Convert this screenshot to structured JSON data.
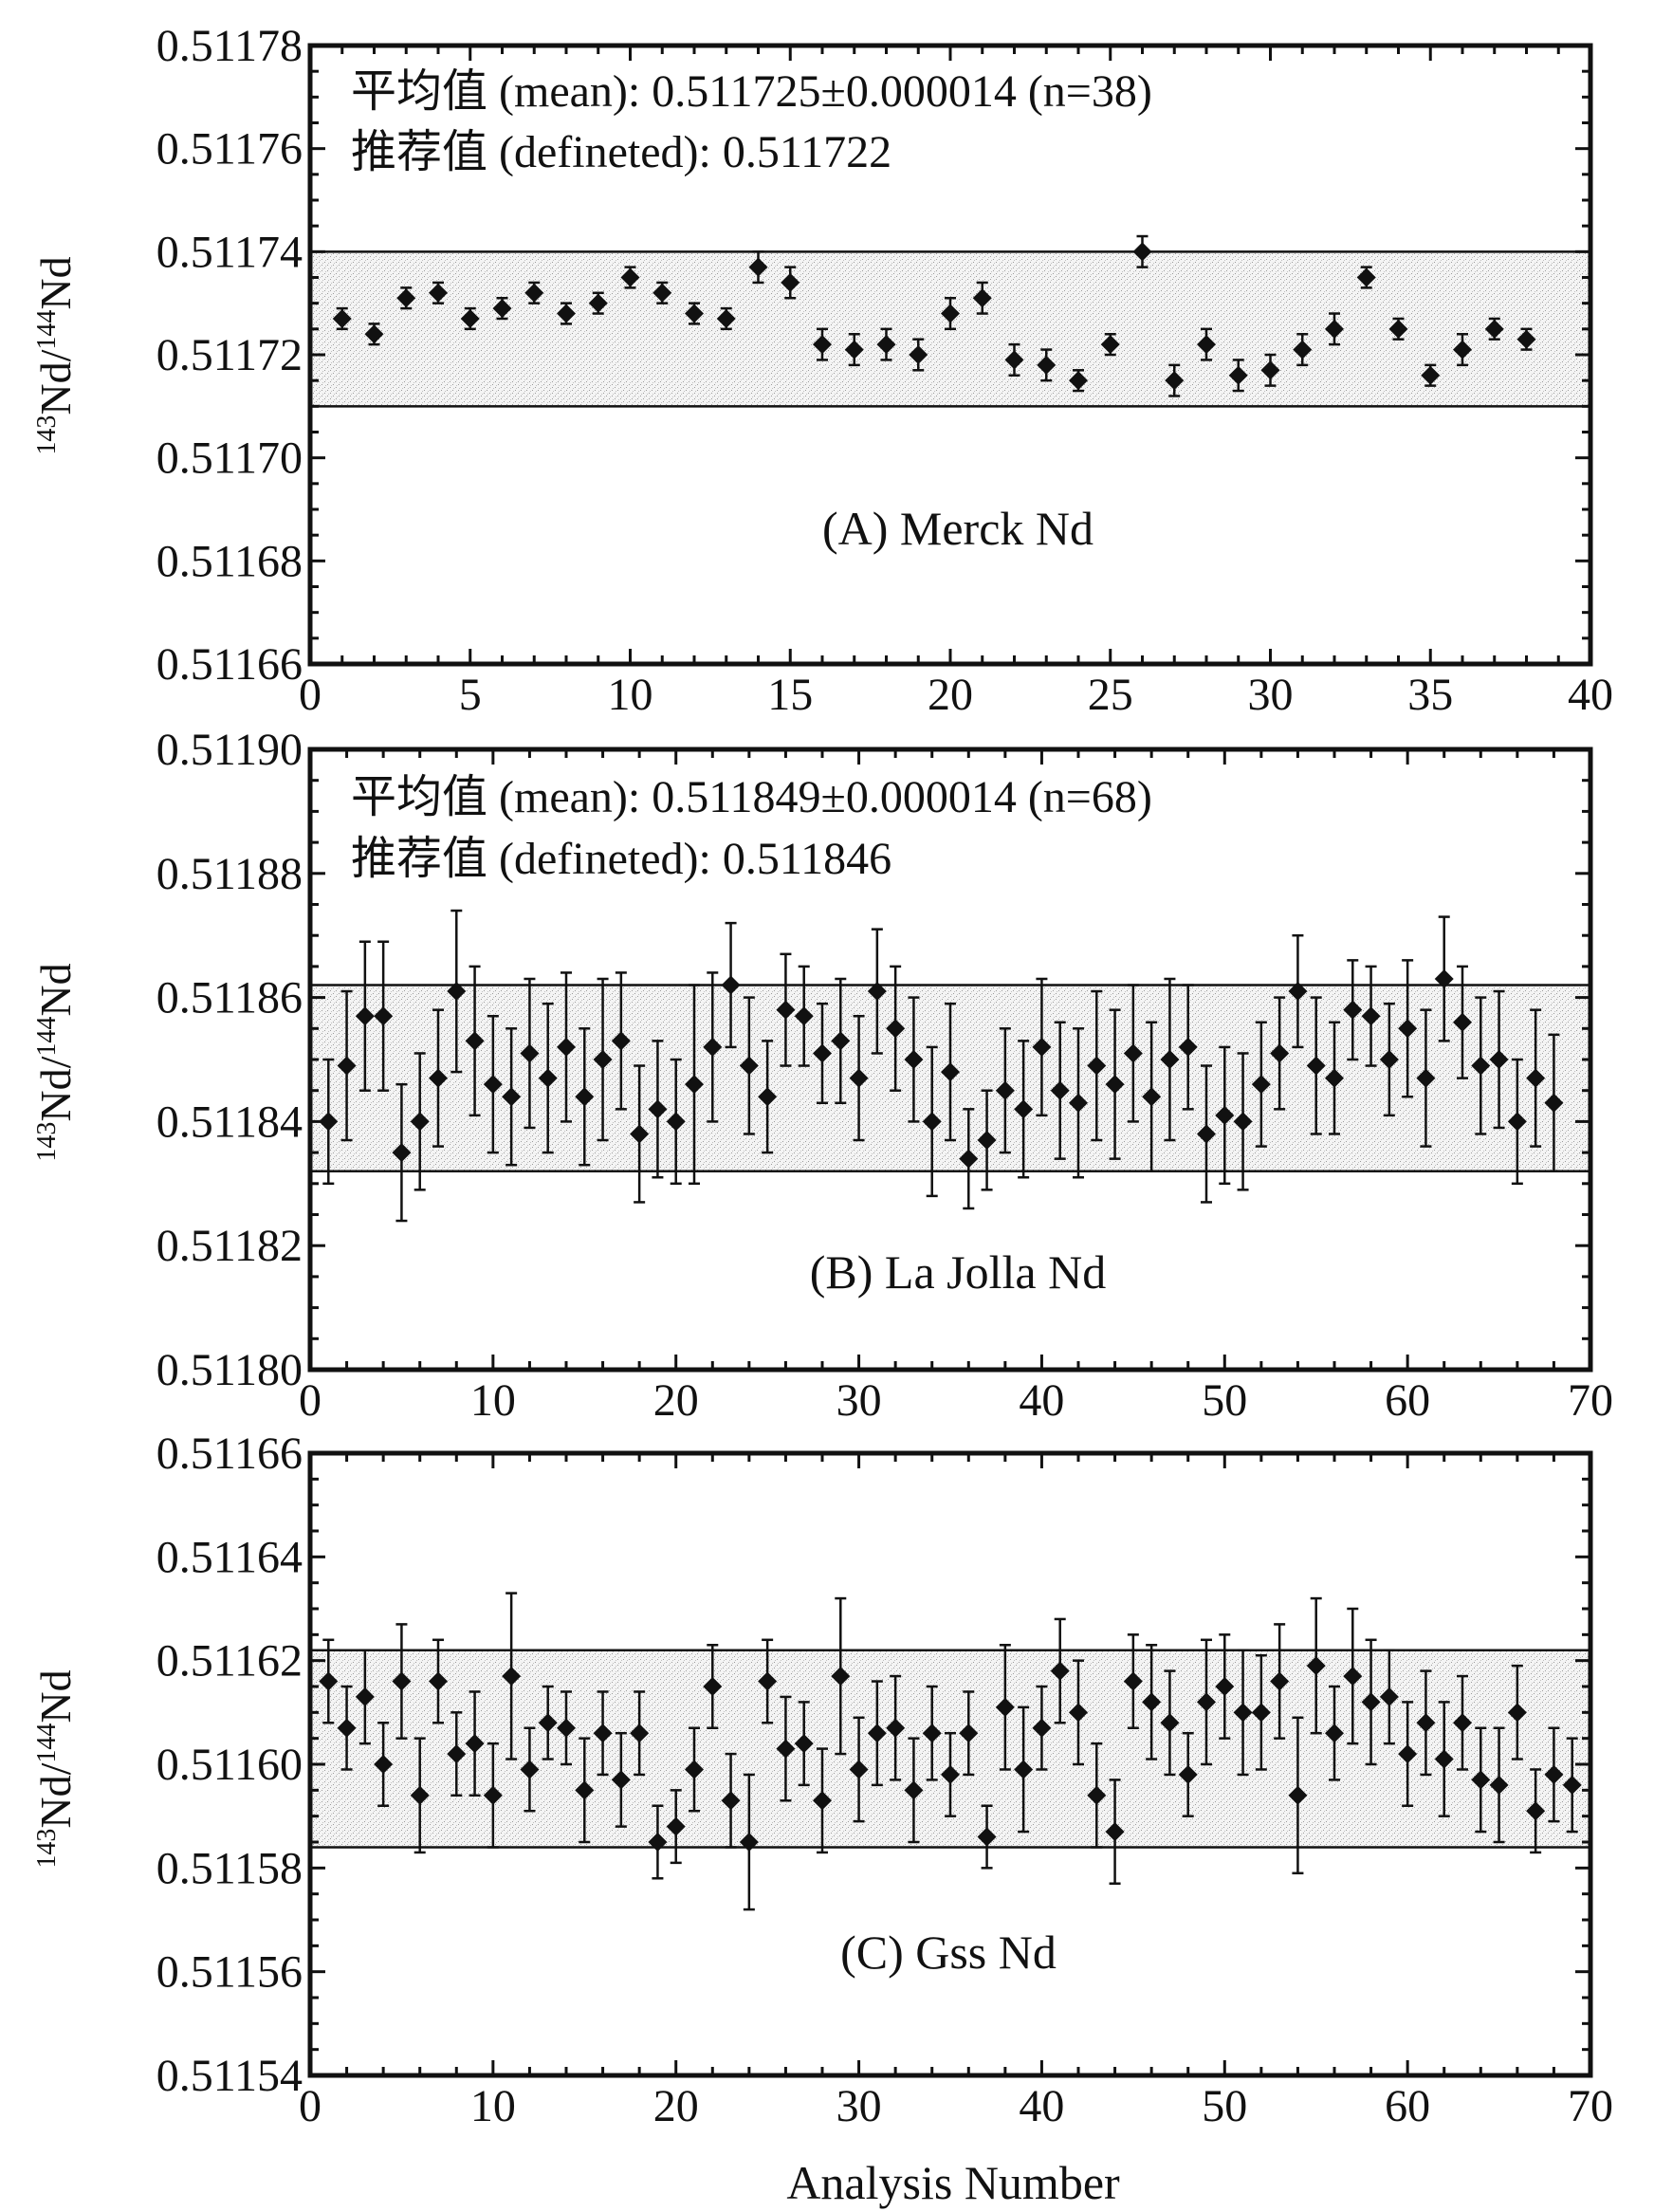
{
  "figure": {
    "x_axis_label": "Analysis Number",
    "y_axis_label_sup1": "143",
    "y_axis_label_main1": "Nd/",
    "y_axis_label_sup2": "144",
    "y_axis_label_main2": "Nd"
  },
  "chart_data": [
    {
      "type": "scatter",
      "title": "(A) Merck Nd",
      "mean_line": "平均值 (mean): 0.511725±0.000014 (n=38)",
      "recommended_line": "推荐值 (defineted): 0.511722",
      "xlabel": "",
      "ylabel": "143Nd/144Nd",
      "xlim": [
        0,
        40
      ],
      "ylim": [
        0.51166,
        0.51178
      ],
      "xticks": [
        "0",
        "5",
        "10",
        "15",
        "20",
        "25",
        "30",
        "35",
        "40"
      ],
      "yticks": [
        "0.51166",
        "0.51168",
        "0.51170",
        "0.51172",
        "0.51174",
        "0.51176",
        "0.51178"
      ],
      "band": [
        0.51171,
        0.51174
      ],
      "x": [
        1,
        2,
        3,
        4,
        5,
        6,
        7,
        8,
        9,
        10,
        11,
        12,
        13,
        14,
        15,
        16,
        17,
        18,
        19,
        20,
        21,
        22,
        23,
        24,
        25,
        26,
        27,
        28,
        29,
        30,
        31,
        32,
        33,
        34,
        35,
        36,
        37,
        38
      ],
      "y": [
        0.511727,
        0.511724,
        0.511731,
        0.511732,
        0.511727,
        0.511729,
        0.511732,
        0.511728,
        0.51173,
        0.511735,
        0.511732,
        0.511728,
        0.511727,
        0.511737,
        0.511734,
        0.511722,
        0.511721,
        0.511722,
        0.51172,
        0.511728,
        0.511731,
        0.511719,
        0.511718,
        0.511715,
        0.511722,
        0.51174,
        0.511715,
        0.511722,
        0.511716,
        0.511717,
        0.511721,
        0.511725,
        0.511735,
        0.511725,
        0.511716,
        0.511721,
        0.511725,
        0.511723
      ],
      "error": [
        2e-06,
        2e-06,
        2e-06,
        2e-06,
        2e-06,
        2e-06,
        2e-06,
        2e-06,
        2e-06,
        2e-06,
        2e-06,
        2e-06,
        2e-06,
        3e-06,
        3e-06,
        3e-06,
        3e-06,
        3e-06,
        3e-06,
        3e-06,
        3e-06,
        3e-06,
        3e-06,
        2e-06,
        2e-06,
        3e-06,
        3e-06,
        3e-06,
        3e-06,
        3e-06,
        3e-06,
        3e-06,
        2e-06,
        2e-06,
        2e-06,
        3e-06,
        2e-06,
        2e-06
      ]
    },
    {
      "type": "scatter",
      "title": "(B) La Jolla Nd",
      "mean_line": "平均值 (mean): 0.511849±0.000014 (n=68)",
      "recommended_line": "推荐值 (defineted): 0.511846",
      "xlabel": "",
      "ylabel": "143Nd/144Nd",
      "xlim": [
        0,
        70
      ],
      "ylim": [
        0.5118,
        0.5119
      ],
      "xticks": [
        "0",
        "10",
        "20",
        "30",
        "40",
        "50",
        "60",
        "70"
      ],
      "yticks": [
        "0.51180",
        "0.51182",
        "0.51184",
        "0.51186",
        "0.51188",
        "0.51190"
      ],
      "band": [
        0.511832,
        0.511862
      ],
      "x": [
        1,
        2,
        3,
        4,
        5,
        6,
        7,
        8,
        9,
        10,
        11,
        12,
        13,
        14,
        15,
        16,
        17,
        18,
        19,
        20,
        21,
        22,
        23,
        24,
        25,
        26,
        27,
        28,
        29,
        30,
        31,
        32,
        33,
        34,
        35,
        36,
        37,
        38,
        39,
        40,
        41,
        42,
        43,
        44,
        45,
        46,
        47,
        48,
        49,
        50,
        51,
        52,
        53,
        54,
        55,
        56,
        57,
        58,
        59,
        60,
        61,
        62,
        63,
        64,
        65,
        66,
        67,
        68
      ],
      "y": [
        0.51184,
        0.511849,
        0.511857,
        0.511857,
        0.511835,
        0.51184,
        0.511847,
        0.511861,
        0.511853,
        0.511846,
        0.511844,
        0.511851,
        0.511847,
        0.511852,
        0.511844,
        0.51185,
        0.511853,
        0.511838,
        0.511842,
        0.51184,
        0.511846,
        0.511852,
        0.511862,
        0.511849,
        0.511844,
        0.511858,
        0.511857,
        0.511851,
        0.511853,
        0.511847,
        0.511861,
        0.511855,
        0.51185,
        0.51184,
        0.511848,
        0.511834,
        0.511837,
        0.511845,
        0.511842,
        0.511852,
        0.511845,
        0.511843,
        0.511849,
        0.511846,
        0.511851,
        0.511844,
        0.51185,
        0.511852,
        0.511838,
        0.511841,
        0.51184,
        0.511846,
        0.511851,
        0.511861,
        0.511849,
        0.511847,
        0.511858,
        0.511857,
        0.51185,
        0.511855,
        0.511847,
        0.511863,
        0.511856,
        0.511849,
        0.51185,
        0.51184,
        0.511847,
        0.511843
      ],
      "error": [
        1e-05,
        1.2e-05,
        1.2e-05,
        1.2e-05,
        1.1e-05,
        1.1e-05,
        1.1e-05,
        1.3e-05,
        1.2e-05,
        1.1e-05,
        1.1e-05,
        1.2e-05,
        1.2e-05,
        1.2e-05,
        1.1e-05,
        1.3e-05,
        1.1e-05,
        1.1e-05,
        1.1e-05,
        1e-05,
        1.6e-05,
        1.2e-05,
        1e-05,
        1.1e-05,
        9e-06,
        9e-06,
        8e-06,
        8e-06,
        1e-05,
        1e-05,
        1e-05,
        1e-05,
        1e-05,
        1.2e-05,
        1.1e-05,
        8e-06,
        8e-06,
        1e-05,
        1.1e-05,
        1.1e-05,
        1.1e-05,
        1.2e-05,
        1.2e-05,
        1.2e-05,
        1.1e-05,
        1.2e-05,
        1.3e-05,
        1e-05,
        1.1e-05,
        1.1e-05,
        1.1e-05,
        1e-05,
        9e-06,
        9e-06,
        1.1e-05,
        9e-06,
        8e-06,
        8e-06,
        9e-06,
        1.1e-05,
        1.1e-05,
        1e-05,
        9e-06,
        1.1e-05,
        1.1e-05,
        1e-05,
        1.1e-05,
        1.1e-05
      ]
    },
    {
      "type": "scatter",
      "title": "(C) Gss Nd",
      "xlabel": "Analysis Number",
      "ylabel": "143Nd/144Nd",
      "xlim": [
        0,
        70
      ],
      "ylim": [
        0.51154,
        0.51166
      ],
      "xticks": [
        "0",
        "10",
        "20",
        "30",
        "40",
        "50",
        "60",
        "70"
      ],
      "yticks": [
        "0.51154",
        "0.51156",
        "0.51158",
        "0.51160",
        "0.51162",
        "0.51164",
        "0.51166"
      ],
      "band": [
        0.511584,
        0.511622
      ],
      "x": [
        1,
        2,
        3,
        4,
        5,
        6,
        7,
        8,
        9,
        10,
        11,
        12,
        13,
        14,
        15,
        16,
        17,
        18,
        19,
        20,
        21,
        22,
        23,
        24,
        25,
        26,
        27,
        28,
        29,
        30,
        31,
        32,
        33,
        34,
        35,
        36,
        37,
        38,
        39,
        40,
        41,
        42,
        43,
        44,
        45,
        46,
        47,
        48,
        49,
        50,
        51,
        52,
        53,
        54,
        55,
        56,
        57,
        58,
        59,
        60,
        61,
        62,
        63,
        64,
        65,
        66,
        67,
        68,
        69
      ],
      "y": [
        0.511616,
        0.511607,
        0.511613,
        0.5116,
        0.511616,
        0.511594,
        0.511616,
        0.511602,
        0.511604,
        0.511594,
        0.511617,
        0.511599,
        0.511608,
        0.511607,
        0.511595,
        0.511606,
        0.511597,
        0.511606,
        0.511585,
        0.511588,
        0.511599,
        0.511615,
        0.511593,
        0.511585,
        0.511616,
        0.511603,
        0.511604,
        0.511593,
        0.511617,
        0.511599,
        0.511606,
        0.511607,
        0.511595,
        0.511606,
        0.511598,
        0.511606,
        0.511586,
        0.511611,
        0.511599,
        0.511607,
        0.511618,
        0.51161,
        0.511594,
        0.511587,
        0.511616,
        0.511612,
        0.511608,
        0.511598,
        0.511612,
        0.511615,
        0.51161,
        0.51161,
        0.511616,
        0.511594,
        0.511619,
        0.511606,
        0.511617,
        0.511612,
        0.511613,
        0.511602,
        0.511608,
        0.511601,
        0.511608,
        0.511597,
        0.511596,
        0.51161,
        0.511591,
        0.511598,
        0.511596
      ],
      "error": [
        8e-06,
        8e-06,
        9e-06,
        8e-06,
        1.1e-05,
        1.1e-05,
        8e-06,
        8e-06,
        1e-05,
        1e-05,
        1.6e-05,
        8e-06,
        7e-06,
        7e-06,
        1e-05,
        8e-06,
        9e-06,
        8e-06,
        7e-06,
        7e-06,
        8e-06,
        8e-06,
        9e-06,
        1.3e-05,
        8e-06,
        1e-05,
        8e-06,
        1e-05,
        1.5e-05,
        1e-05,
        1e-05,
        1e-05,
        1e-05,
        9e-06,
        8e-06,
        8e-06,
        6e-06,
        1.2e-05,
        1.2e-05,
        8e-06,
        1e-05,
        1e-05,
        1e-05,
        1e-05,
        9e-06,
        1.1e-05,
        1e-05,
        8e-06,
        1.2e-05,
        1e-05,
        1.2e-05,
        1.1e-05,
        1.1e-05,
        1.5e-05,
        1.3e-05,
        9e-06,
        1.3e-05,
        1.2e-05,
        9e-06,
        1e-05,
        1e-05,
        1.1e-05,
        9e-06,
        1e-05,
        1.1e-05,
        9e-06,
        8e-06,
        9e-06,
        9e-06
      ]
    }
  ]
}
